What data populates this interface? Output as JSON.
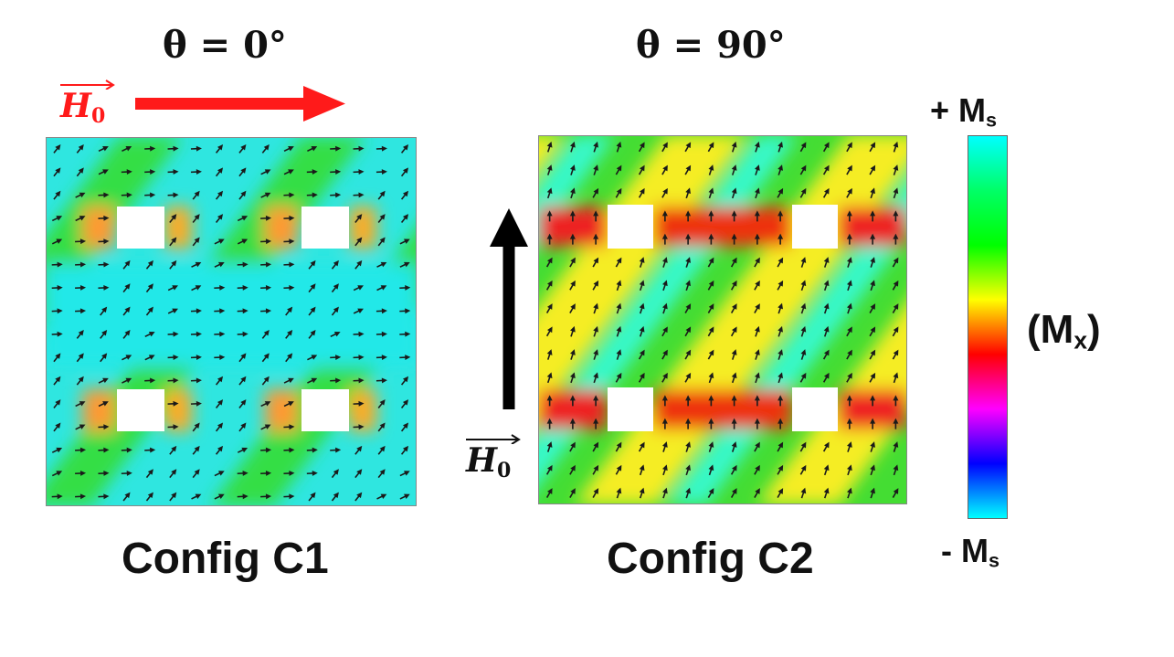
{
  "panels": {
    "c1": {
      "theta_var": "θ",
      "theta_rest": "= 0°",
      "caption": "Config C1",
      "field_label": {
        "symbol": "H",
        "sub": "0",
        "color": "#ff1a1a"
      },
      "field_arrow": {
        "icon": "arrow-right-icon",
        "color": "#ff1a1a"
      },
      "magnetization_arrow_icon": "arrow-icon"
    },
    "c2": {
      "theta_var": "θ",
      "theta_rest": "= 90°",
      "caption": "Config C2",
      "field_label": {
        "symbol": "H",
        "sub": "0",
        "color": "#000000"
      },
      "field_arrow": {
        "icon": "arrow-up-icon",
        "color": "#000000"
      },
      "magnetization_arrow_icon": "arrow-icon"
    }
  },
  "colorbar": {
    "top": {
      "prefix": "+ M",
      "sub": "s"
    },
    "bottom": {
      "prefix": "- M",
      "sub": "s"
    },
    "label": {
      "open": "(M",
      "sub": "x",
      "close": ")"
    },
    "colors_top_to_bottom": [
      "#00ffff",
      "#00ff66",
      "#00ff00",
      "#ffff00",
      "#ff0000",
      "#ff00ff",
      "#0000ff",
      "#00ffff"
    ]
  }
}
